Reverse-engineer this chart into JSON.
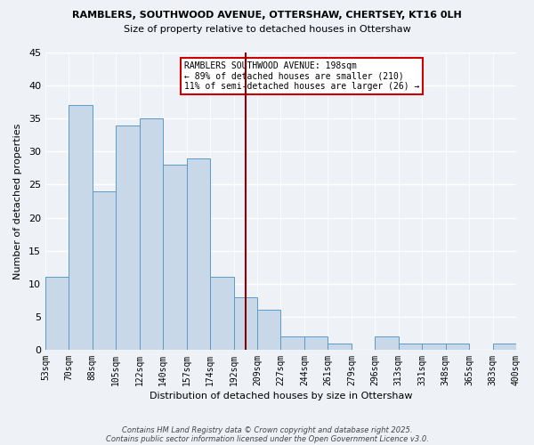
{
  "title1": "RAMBLERS, SOUTHWOOD AVENUE, OTTERSHAW, CHERTSEY, KT16 0LH",
  "title2": "Size of property relative to detached houses in Ottershaw",
  "xlabel": "Distribution of detached houses by size in Ottershaw",
  "ylabel": "Number of detached properties",
  "tick_labels": [
    "53sqm",
    "70sqm",
    "88sqm",
    "105sqm",
    "122sqm",
    "140sqm",
    "157sqm",
    "174sqm",
    "192sqm",
    "209sqm",
    "227sqm",
    "244sqm",
    "261sqm",
    "279sqm",
    "296sqm",
    "313sqm",
    "331sqm",
    "348sqm",
    "365sqm",
    "383sqm",
    "400sqm"
  ],
  "values": [
    11,
    37,
    24,
    34,
    35,
    28,
    29,
    11,
    8,
    6,
    2,
    2,
    1,
    0,
    2,
    1,
    1,
    1,
    0,
    1
  ],
  "bar_color": "#c8d8e8",
  "bar_edge_color": "#5a9bc8",
  "vline_pos": 8.5,
  "annotation_title": "RAMBLERS SOUTHWOOD AVENUE: 198sqm",
  "annotation_line1": "← 89% of detached houses are smaller (210)",
  "annotation_line2": "11% of semi-detached houses are larger (26) →",
  "vline_color": "#8b0000",
  "annotation_box_color": "#ffffff",
  "annotation_box_edge": "#cc0000",
  "bg_color": "#eef2f7",
  "ylim": [
    0,
    45
  ],
  "yticks": [
    0,
    5,
    10,
    15,
    20,
    25,
    30,
    35,
    40,
    45
  ],
  "footer1": "Contains HM Land Registry data © Crown copyright and database right 2025.",
  "footer2": "Contains public sector information licensed under the Open Government Licence v3.0."
}
